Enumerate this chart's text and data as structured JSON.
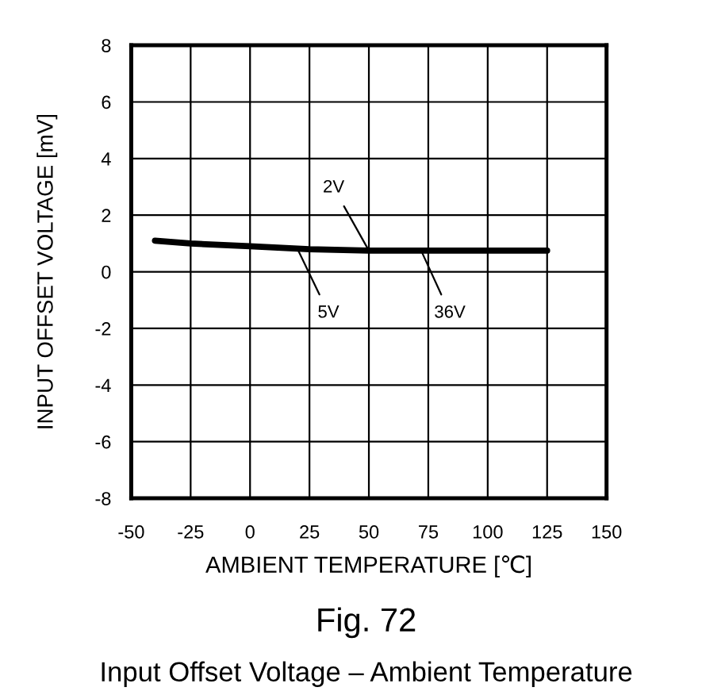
{
  "chart_data": {
    "type": "line",
    "xlabel": "AMBIENT TEMPERATURE [℃]",
    "ylabel": "INPUT OFFSET VOLTAGE [mV]",
    "annotations": [
      {
        "text": "2V",
        "x": 50,
        "y": 0.75
      },
      {
        "text": "5V",
        "x": 20,
        "y": 0.8
      },
      {
        "text": "36V",
        "x": 72,
        "y": 0.75
      },
      "Fig. 72",
      "Input Offset Voltage – Ambient Temperature"
    ],
    "x": [
      -40,
      -25,
      0,
      25,
      50,
      75,
      100,
      125
    ],
    "series": [
      {
        "color": "#000000",
        "values": [
          1.1,
          1.0,
          0.9,
          0.8,
          0.75,
          0.75,
          0.75,
          0.75
        ]
      }
    ],
    "xlim": [
      -50,
      150
    ],
    "xticks": [
      -50,
      -25,
      0,
      25,
      50,
      75,
      100,
      125,
      150
    ],
    "ylim": [
      -8,
      8
    ],
    "yticks": [
      -8,
      -6,
      -4,
      -2,
      0,
      2,
      4,
      6,
      8
    ],
    "grid": true,
    "legend": false,
    "marker": "none",
    "line_style": "solid"
  }
}
